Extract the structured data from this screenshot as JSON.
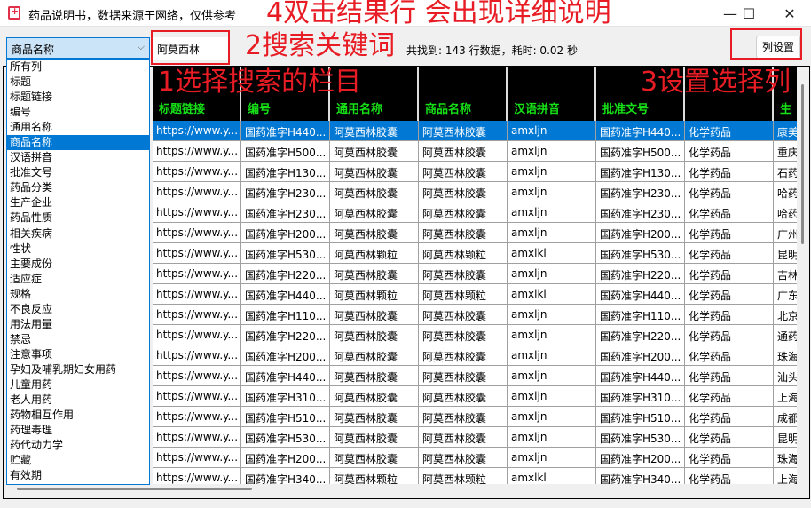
{
  "window": {
    "title": "药品说明书，数据来源于网络，仅供参考",
    "minimize": "—",
    "maximize": "☐",
    "close": "✕"
  },
  "search": {
    "field_selected": "商品名称",
    "keyword": "阿莫西林",
    "status": "共找到: 143 行数据，耗时: 0.02 秒",
    "column_settings_label": "列设置"
  },
  "dropdown_items": [
    "所有列",
    "标题",
    "标题链接",
    "编号",
    "通用名称",
    "商品名称",
    "汉语拼音",
    "批准文号",
    "药品分类",
    "生产企业",
    "药品性质",
    "相关疾病",
    "性状",
    "主要成份",
    "适应症",
    "规格",
    "不良反应",
    "用法用量",
    "禁忌",
    "注意事项",
    "孕妇及哺乳期妇女用药",
    "儿童用药",
    "老人用药",
    "药物相互作用",
    "药理毒理",
    "药代动力学",
    "贮藏",
    "有效期"
  ],
  "annotations": {
    "step1": "1选择搜索的栏目",
    "step2": "2搜索关键词",
    "step3": "3设置选择列",
    "step4": "4双击结果行 会出现详细说明"
  },
  "table": {
    "headers": [
      "标题链接",
      "编号",
      "通用名称",
      "商品名称",
      "汉语拼音",
      "批准文号",
      "",
      "生"
    ],
    "rows": [
      [
        "https://www.y...",
        "国药准字H440...",
        "阿莫西林胶囊",
        "阿莫西林胶囊",
        "amxljn",
        "国药准字H440...",
        "化学药品",
        "康美"
      ],
      [
        "https://www.y...",
        "国药准字H500...",
        "阿莫西林胶囊",
        "阿莫西林胶囊",
        "amxljn",
        "国药准字H500...",
        "化学药品",
        "重庆"
      ],
      [
        "https://www.y...",
        "国药准字H130...",
        "阿莫西林胶囊",
        "阿莫西林胶囊",
        "amxljn",
        "国药准字H130...",
        "化学药品",
        "石药"
      ],
      [
        "https://www.y...",
        "国药准字H230...",
        "阿莫西林胶囊",
        "阿莫西林胶囊",
        "amxljn",
        "国药准字H230...",
        "化学药品",
        "哈药"
      ],
      [
        "https://www.y...",
        "国药准字H230...",
        "阿莫西林胶囊",
        "阿莫西林胶囊",
        "amxljn",
        "国药准字H230...",
        "化学药品",
        "哈药"
      ],
      [
        "https://www.y...",
        "国药准字H200...",
        "阿莫西林胶囊",
        "阿莫西林胶囊",
        "amxljn",
        "国药准字H200...",
        "化学药品",
        "广州"
      ],
      [
        "https://www.y...",
        "国药准字H530...",
        "阿莫西林颗粒",
        "阿莫西林颗粒",
        "amxlkl",
        "国药准字H530...",
        "化学药品",
        "昆明"
      ],
      [
        "https://www.y...",
        "国药准字H220...",
        "阿莫西林胶囊",
        "阿莫西林胶囊",
        "amxljn",
        "国药准字H220...",
        "化学药品",
        "吉林"
      ],
      [
        "https://www.y...",
        "国药准字H440...",
        "阿莫西林颗粒",
        "阿莫西林颗粒",
        "amxlkl",
        "国药准字H440...",
        "化学药品",
        "广东"
      ],
      [
        "https://www.y...",
        "国药准字H110...",
        "阿莫西林胶囊",
        "阿莫西林胶囊",
        "amxljn",
        "国药准字H110...",
        "化学药品",
        "北京"
      ],
      [
        "https://www.y...",
        "国药准字H220...",
        "阿莫西林胶囊",
        "阿莫西林胶囊",
        "amxljn",
        "国药准字H220...",
        "化学药品",
        "通药"
      ],
      [
        "https://www.y...",
        "国药准字H200...",
        "阿莫西林胶囊",
        "阿莫西林胶囊",
        "amxljn",
        "国药准字H200...",
        "化学药品",
        "珠海"
      ],
      [
        "https://www.y...",
        "国药准字H440...",
        "阿莫西林胶囊",
        "阿莫西林胶囊",
        "amxljn",
        "国药准字H440...",
        "化学药品",
        "汕头"
      ],
      [
        "https://www.y...",
        "国药准字H310...",
        "阿莫西林胶囊",
        "阿莫西林胶囊",
        "amxljn",
        "国药准字H310...",
        "化学药品",
        "上海"
      ],
      [
        "https://www.y...",
        "国药准字H510...",
        "阿莫西林胶囊",
        "阿莫西林胶囊",
        "amxljn",
        "国药准字H510...",
        "化学药品",
        "成都"
      ],
      [
        "https://www.y...",
        "国药准字H530...",
        "阿莫西林胶囊",
        "阿莫西林胶囊",
        "amxljn",
        "国药准字H530...",
        "化学药品",
        "昆明"
      ],
      [
        "https://www.y...",
        "国药准字H200...",
        "阿莫西林胶囊",
        "阿莫西林胶囊",
        "amxljn",
        "国药准字H200...",
        "化学药品",
        "珠海"
      ],
      [
        "https://www.y...",
        "国药准字H340...",
        "阿莫西林颗粒",
        "阿莫西林颗粒",
        "amxlkl",
        "国药准字H340...",
        "化学药品",
        "上海"
      ]
    ],
    "selected_row": 0
  },
  "colors": {
    "accent": "#0078d4",
    "header_bg": "#000000",
    "header_text": "#16e016",
    "annotation": "#e81c24"
  }
}
